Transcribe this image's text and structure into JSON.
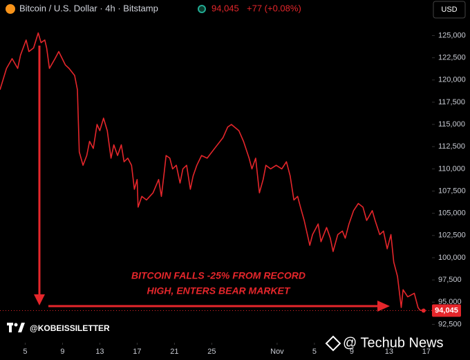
{
  "chart_data": {
    "type": "line",
    "title": "Bitcoin / U.S. Dollar · 4h · Bitstamp",
    "header_price": "94,045",
    "header_change": "+77 (+0.08%)",
    "currency": "USD",
    "annotation": [
      "BITCOIN FALLS -25% FROM RECORD",
      "HIGH, ENTERS BEAR MARKET"
    ],
    "source": "@KOBEISSILETTER",
    "watermark": "@ Techub News",
    "last_price_label": "94,045",
    "color": "#e5262b",
    "x": [
      2.3,
      3.0,
      3.6,
      4.2,
      4.5,
      5.1,
      5.4,
      5.9,
      6.4,
      6.7,
      7.1,
      7.3,
      7.6,
      8.2,
      8.6,
      9.3,
      9.7,
      10.3,
      10.6,
      10.8,
      11.2,
      11.6,
      11.9,
      12.3,
      12.7,
      13.0,
      13.4,
      13.8,
      14.2,
      14.5,
      14.9,
      15.3,
      15.6,
      16.0,
      16.4,
      16.7,
      17.0,
      17.1,
      17.5,
      18.0,
      18.7,
      19.3,
      19.6,
      19.9,
      20.1,
      20.5,
      20.8,
      21.2,
      21.6,
      21.9,
      22.3,
      22.7,
      23.0,
      23.4,
      23.9,
      24.5,
      25.3,
      26.2,
      26.7,
      27.1,
      27.9,
      28.4,
      29.0,
      29.3,
      29.7,
      30.1,
      30.5,
      30.8,
      31.3,
      31.9,
      32.5,
      33.0,
      33.4,
      33.8,
      34.2,
      34.5,
      34.9,
      35.5,
      35.8,
      36.4,
      36.7,
      37.3,
      37.7,
      38.0,
      38.5,
      39.0,
      39.3,
      39.7,
      40.2,
      40.7,
      41.2,
      41.6,
      42.2,
      42.5,
      43.0,
      43.4,
      43.8,
      44.2,
      44.5,
      44.9,
      45.3,
      45.5,
      46.0,
      46.7,
      47.1,
      47.3,
      47.7
    ],
    "values": [
      118900,
      121300,
      122400,
      121300,
      122800,
      124500,
      123200,
      123600,
      125300,
      124200,
      124500,
      123600,
      121300,
      122400,
      123200,
      121700,
      121300,
      120500,
      118900,
      111900,
      110400,
      111500,
      113100,
      112300,
      115000,
      114300,
      115700,
      114300,
      111200,
      112700,
      111500,
      112700,
      110800,
      111200,
      110400,
      107700,
      108800,
      105700,
      106900,
      106500,
      107300,
      108800,
      106900,
      109600,
      111500,
      111200,
      110000,
      110400,
      108400,
      110000,
      110400,
      107700,
      109200,
      110400,
      111500,
      111200,
      112300,
      113500,
      114700,
      115000,
      114300,
      113100,
      111200,
      110000,
      111200,
      107300,
      108800,
      110400,
      110000,
      110400,
      110000,
      110800,
      109200,
      106500,
      106900,
      105700,
      104200,
      101400,
      102600,
      103800,
      101800,
      103400,
      102200,
      100700,
      102600,
      103000,
      102200,
      103800,
      105300,
      106100,
      105700,
      104200,
      105300,
      104200,
      102600,
      103000,
      101000,
      102600,
      99500,
      97900,
      94400,
      96400,
      95600,
      96000,
      94400,
      94100,
      94045
    ],
    "xlim": [
      2.3,
      48.6
    ],
    "xticks": [
      5,
      9,
      13,
      17,
      21,
      25,
      {
        "value": 32,
        "label": "Nov"
      },
      {
        "value": 36,
        "label": "5"
      },
      {
        "value": 40,
        "label": "9"
      },
      {
        "value": 44,
        "label": "13"
      },
      {
        "value": 48,
        "label": "17"
      }
    ],
    "ylim": [
      90900,
      129000
    ],
    "yticks": [
      {
        "value": 92500,
        "label": "92,500"
      },
      {
        "value": 95000,
        "label": "95,000"
      },
      {
        "value": 97500,
        "label": "97,500"
      },
      {
        "value": 100000,
        "label": "100,000"
      },
      {
        "value": 102500,
        "label": "102,500"
      },
      {
        "value": 105000,
        "label": "105,000"
      },
      {
        "value": 107500,
        "label": "107,500"
      },
      {
        "value": 110000,
        "label": "110,000"
      },
      {
        "value": 112500,
        "label": "112,500"
      },
      {
        "value": 115000,
        "label": "115,000"
      },
      {
        "value": 117500,
        "label": "117,500"
      },
      {
        "value": 120000,
        "label": "120,000"
      },
      {
        "value": 122500,
        "label": "122,500"
      },
      {
        "value": 125000,
        "label": "125,000"
      }
    ]
  }
}
